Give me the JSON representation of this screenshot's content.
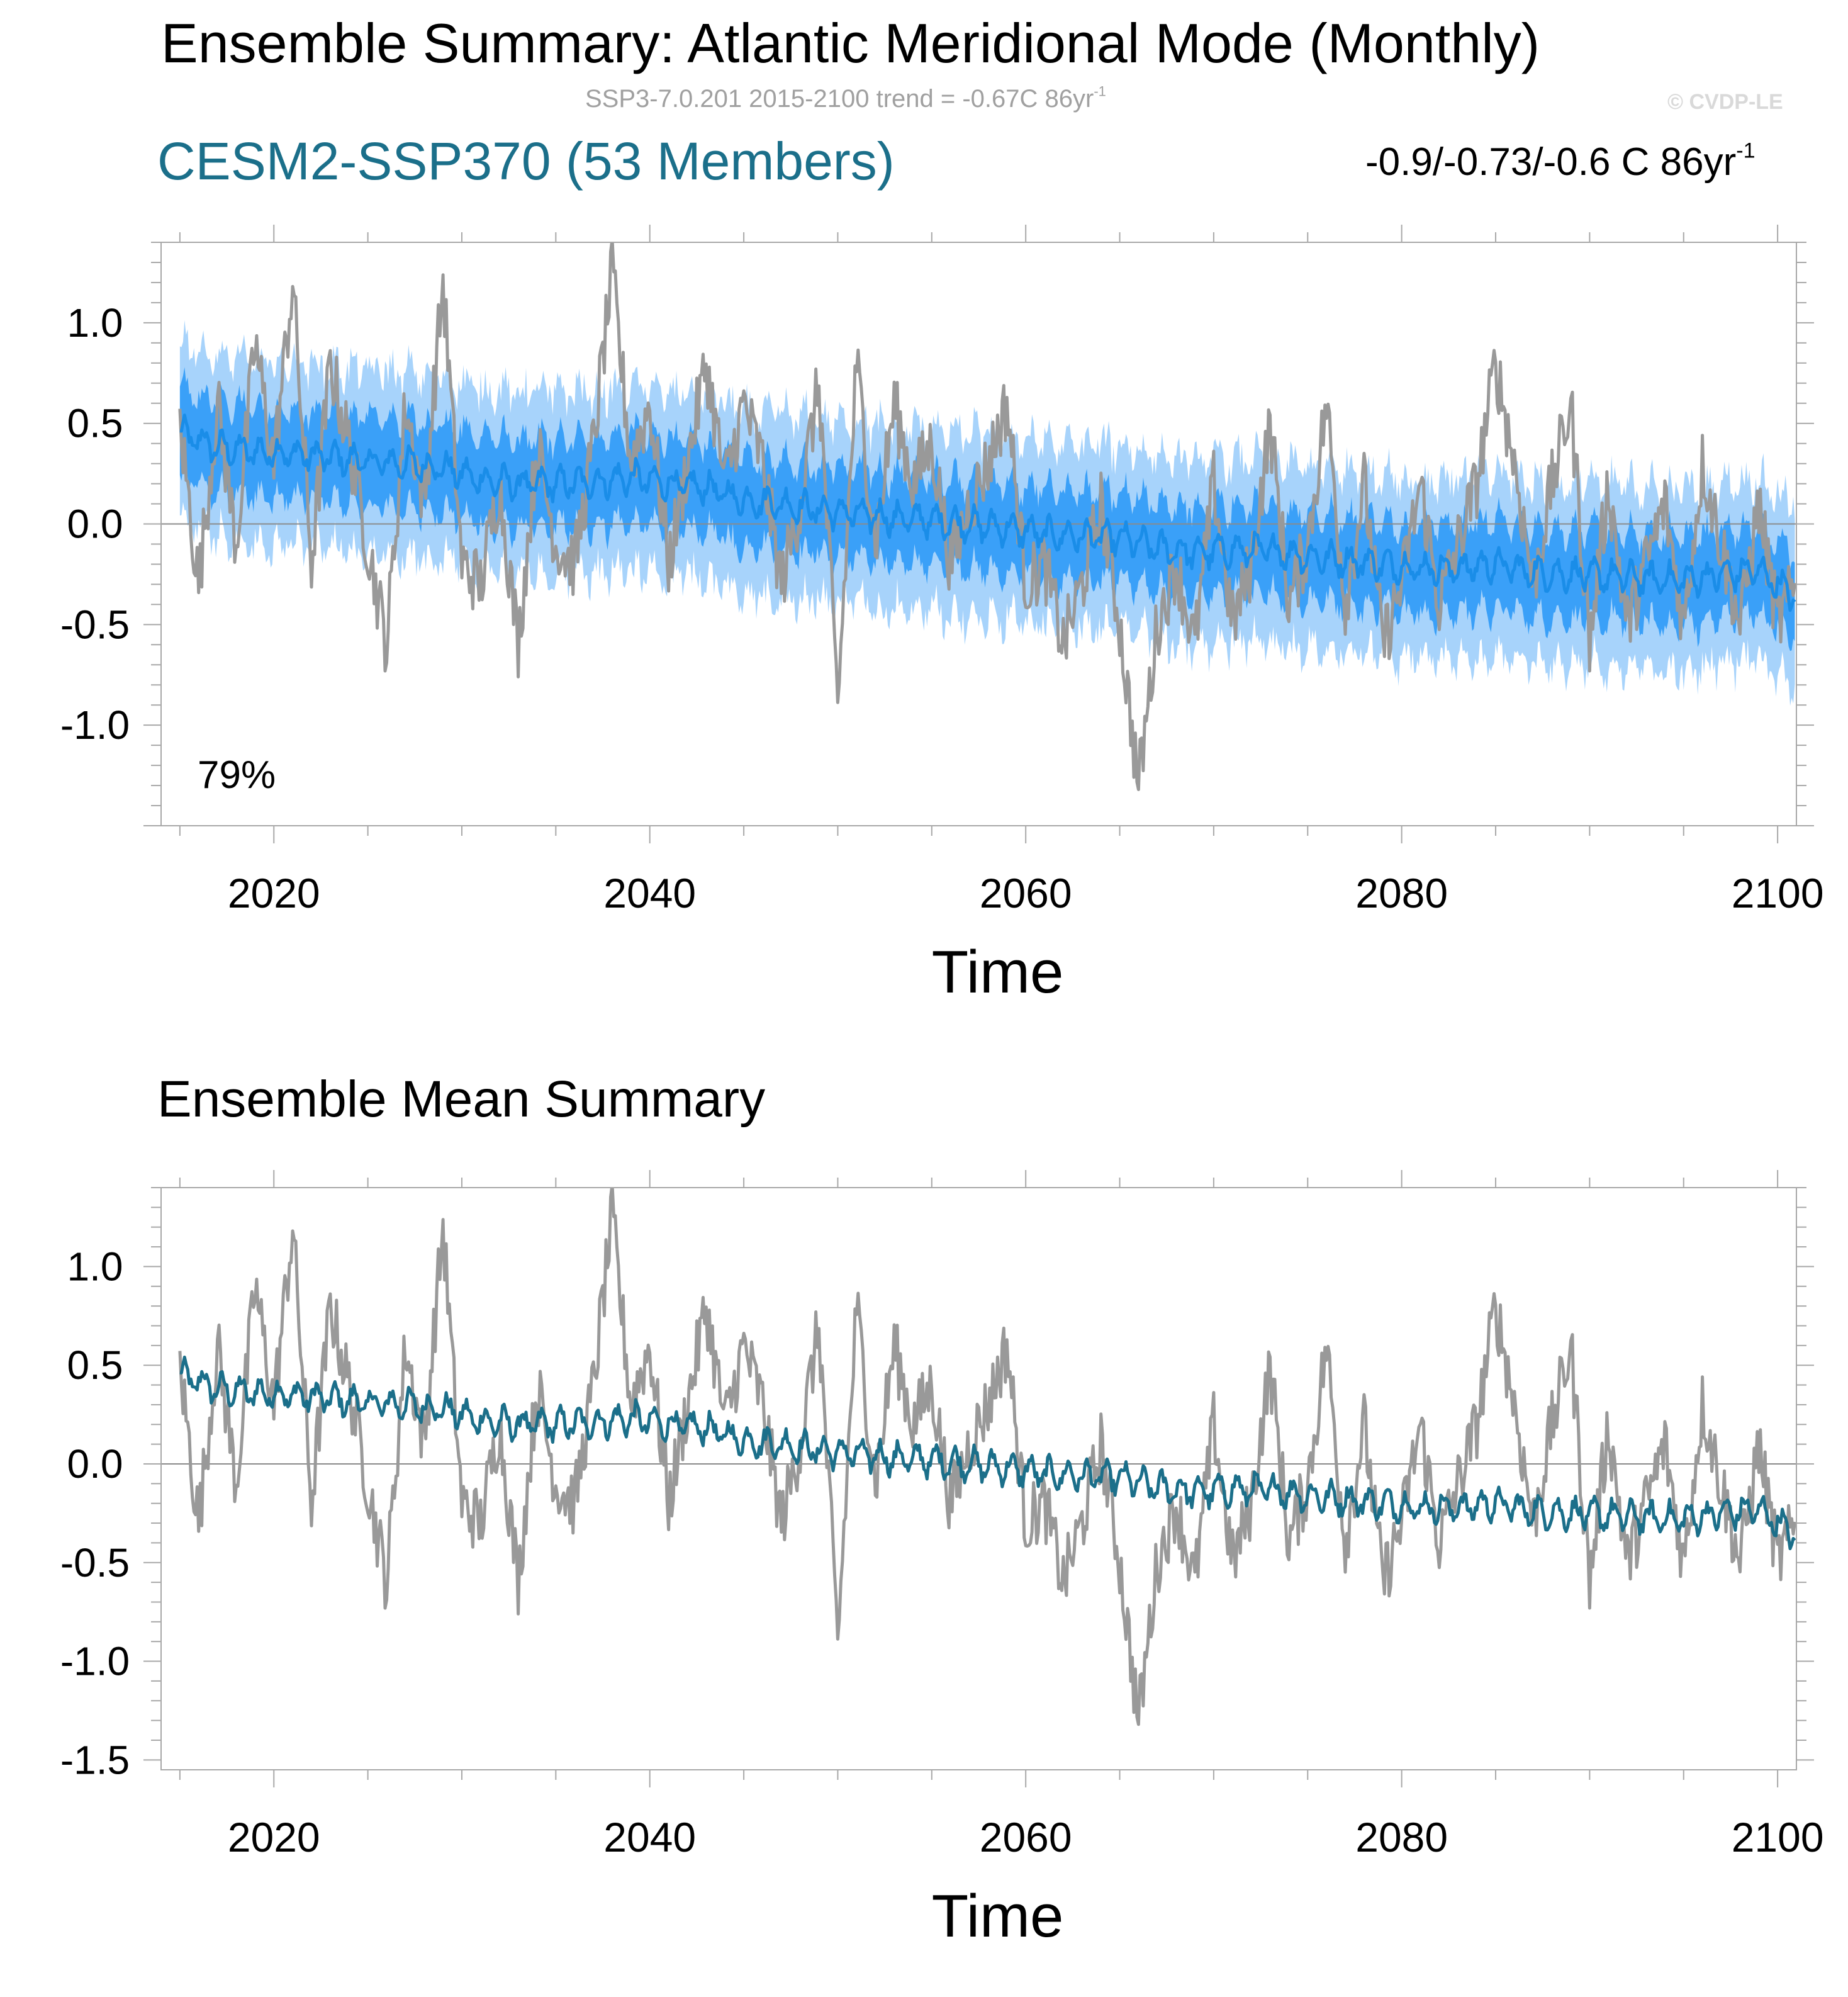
{
  "title": "Ensemble Summary: Atlantic Meridional Mode (Monthly)",
  "subtitle": {
    "text": "SSP3-7.0.201 2015-2100 trend = -0.67C 86yr",
    "sup": "-1"
  },
  "watermark": "© CVDP-LE",
  "model_title": "CESM2-SSP370 (53 Members)",
  "trend_range": {
    "text": "-0.9/-0.73/-0.6 C 86yr",
    "sup": "-1"
  },
  "mean_summary_title": "Ensemble Mean Summary",
  "colors": {
    "ensemble_mean": "#1a8de8",
    "spread_outer": "#a7d3fb",
    "spread_inner": "#3aa0f8",
    "observations": "#999999",
    "mean_line_lower": "#1b6f8a",
    "zero_line": "#8a8a8a"
  },
  "chart_data": [
    {
      "type": "line",
      "panel": "upper",
      "xlabel": "Time",
      "ylabel": "",
      "xlim": [
        2014,
        2101
      ],
      "ylim": [
        -1.5,
        1.4
      ],
      "xticks": [
        "2020",
        "2040",
        "2060",
        "2080",
        "2100"
      ],
      "yticks": [
        "1.0",
        "0.5",
        "0.0",
        "-0.5",
        "-1.0"
      ],
      "annotation": "79%",
      "series": [
        {
          "role": "ensemble_mean",
          "x": [
            2015,
            2017,
            2019,
            2021,
            2023,
            2025,
            2027,
            2029,
            2031,
            2033,
            2035,
            2037,
            2039,
            2041,
            2043,
            2045,
            2047,
            2049,
            2051,
            2053,
            2055,
            2057,
            2059,
            2061,
            2063,
            2065,
            2067,
            2069,
            2071,
            2073,
            2075,
            2077,
            2079,
            2081,
            2083,
            2085,
            2087,
            2089,
            2091,
            2093,
            2095,
            2097,
            2099,
            2101
          ],
          "values": [
            0.45,
            0.38,
            0.36,
            0.35,
            0.33,
            0.31,
            0.3,
            0.28,
            0.22,
            0.2,
            0.2,
            0.21,
            0.23,
            0.2,
            0.18,
            0.12,
            0.1,
            0.07,
            0.05,
            0.03,
            0.02,
            0.0,
            -0.02,
            -0.05,
            -0.06,
            -0.07,
            -0.12,
            -0.14,
            -0.13,
            -0.13,
            -0.16,
            -0.18,
            -0.2,
            -0.22,
            -0.22,
            -0.2,
            -0.24,
            -0.25,
            -0.26,
            -0.27,
            -0.28,
            -0.25,
            -0.23,
            -0.37
          ]
        },
        {
          "role": "spread_outer",
          "half_width": 0.45
        },
        {
          "role": "spread_inner",
          "half_width": 0.22
        },
        {
          "role": "observations",
          "x": [
            2015,
            2016,
            2017,
            2018,
            2019,
            2020,
            2021,
            2022,
            2023,
            2024,
            2025,
            2026,
            2027,
            2028,
            2029,
            2030,
            2031,
            2032,
            2033,
            2034,
            2035,
            2036,
            2037,
            2038,
            2039,
            2040,
            2041,
            2042,
            2043,
            2044,
            2045,
            2046,
            2047,
            2048,
            2049,
            2050,
            2051,
            2052,
            2053,
            2054,
            2055,
            2056,
            2057,
            2058,
            2059,
            2060,
            2061,
            2062,
            2063,
            2064,
            2065,
            2066,
            2067,
            2068,
            2069,
            2070,
            2071,
            2072,
            2073,
            2074,
            2075,
            2076,
            2077,
            2078,
            2079,
            2080,
            2081,
            2082,
            2083,
            2084,
            2085,
            2086,
            2087,
            2088,
            2089,
            2090,
            2091,
            2092,
            2093,
            2094,
            2095,
            2096,
            2097,
            2098,
            2099,
            2100,
            2101
          ],
          "values": [
            0.5,
            -0.3,
            0.6,
            -0.1,
            0.9,
            0.3,
            1.2,
            -0.2,
            0.8,
            0.4,
            -0.1,
            -0.6,
            0.6,
            0.1,
            1.2,
            -0.2,
            -0.3,
            0.2,
            -0.6,
            0.4,
            -0.1,
            -0.2,
            0.4,
            1.25,
            0.3,
            0.6,
            -0.2,
            0.3,
            0.8,
            0.2,
            0.6,
            0.3,
            -0.3,
            0.1,
            0.7,
            -0.9,
            0.8,
            -0.1,
            0.6,
            0.2,
            0.4,
            -0.2,
            0.1,
            0.3,
            0.6,
            -0.3,
            -0.2,
            -0.6,
            -0.3,
            0.1,
            -0.5,
            -1.3,
            -0.5,
            -0.2,
            -0.6,
            0.2,
            -0.5,
            -0.2,
            0.5,
            -0.4,
            -0.1,
            0.6,
            -0.4,
            0.2,
            -0.6,
            -0.3,
            0.2,
            -0.4,
            -0.1,
            0.2,
            0.8,
            0.3,
            -0.3,
            0.2,
            0.6,
            -0.6,
            0.2,
            -0.5,
            -0.2,
            0.1,
            -0.5,
            0.3,
            -0.1,
            -0.5,
            0.1,
            -0.5,
            -0.3
          ]
        }
      ]
    },
    {
      "type": "line",
      "panel": "lower",
      "xlabel": "Time",
      "ylabel": "",
      "xlim": [
        2014,
        2101
      ],
      "ylim": [
        -1.55,
        1.4
      ],
      "xticks": [
        "2020",
        "2040",
        "2060",
        "2080",
        "2100"
      ],
      "yticks": [
        "1.0",
        "0.5",
        "0.0",
        "-0.5",
        "-1.0",
        "-1.5"
      ],
      "series": [
        {
          "role": "ensemble_mean",
          "ref": "upper"
        },
        {
          "role": "observations",
          "ref": "upper"
        }
      ]
    }
  ]
}
